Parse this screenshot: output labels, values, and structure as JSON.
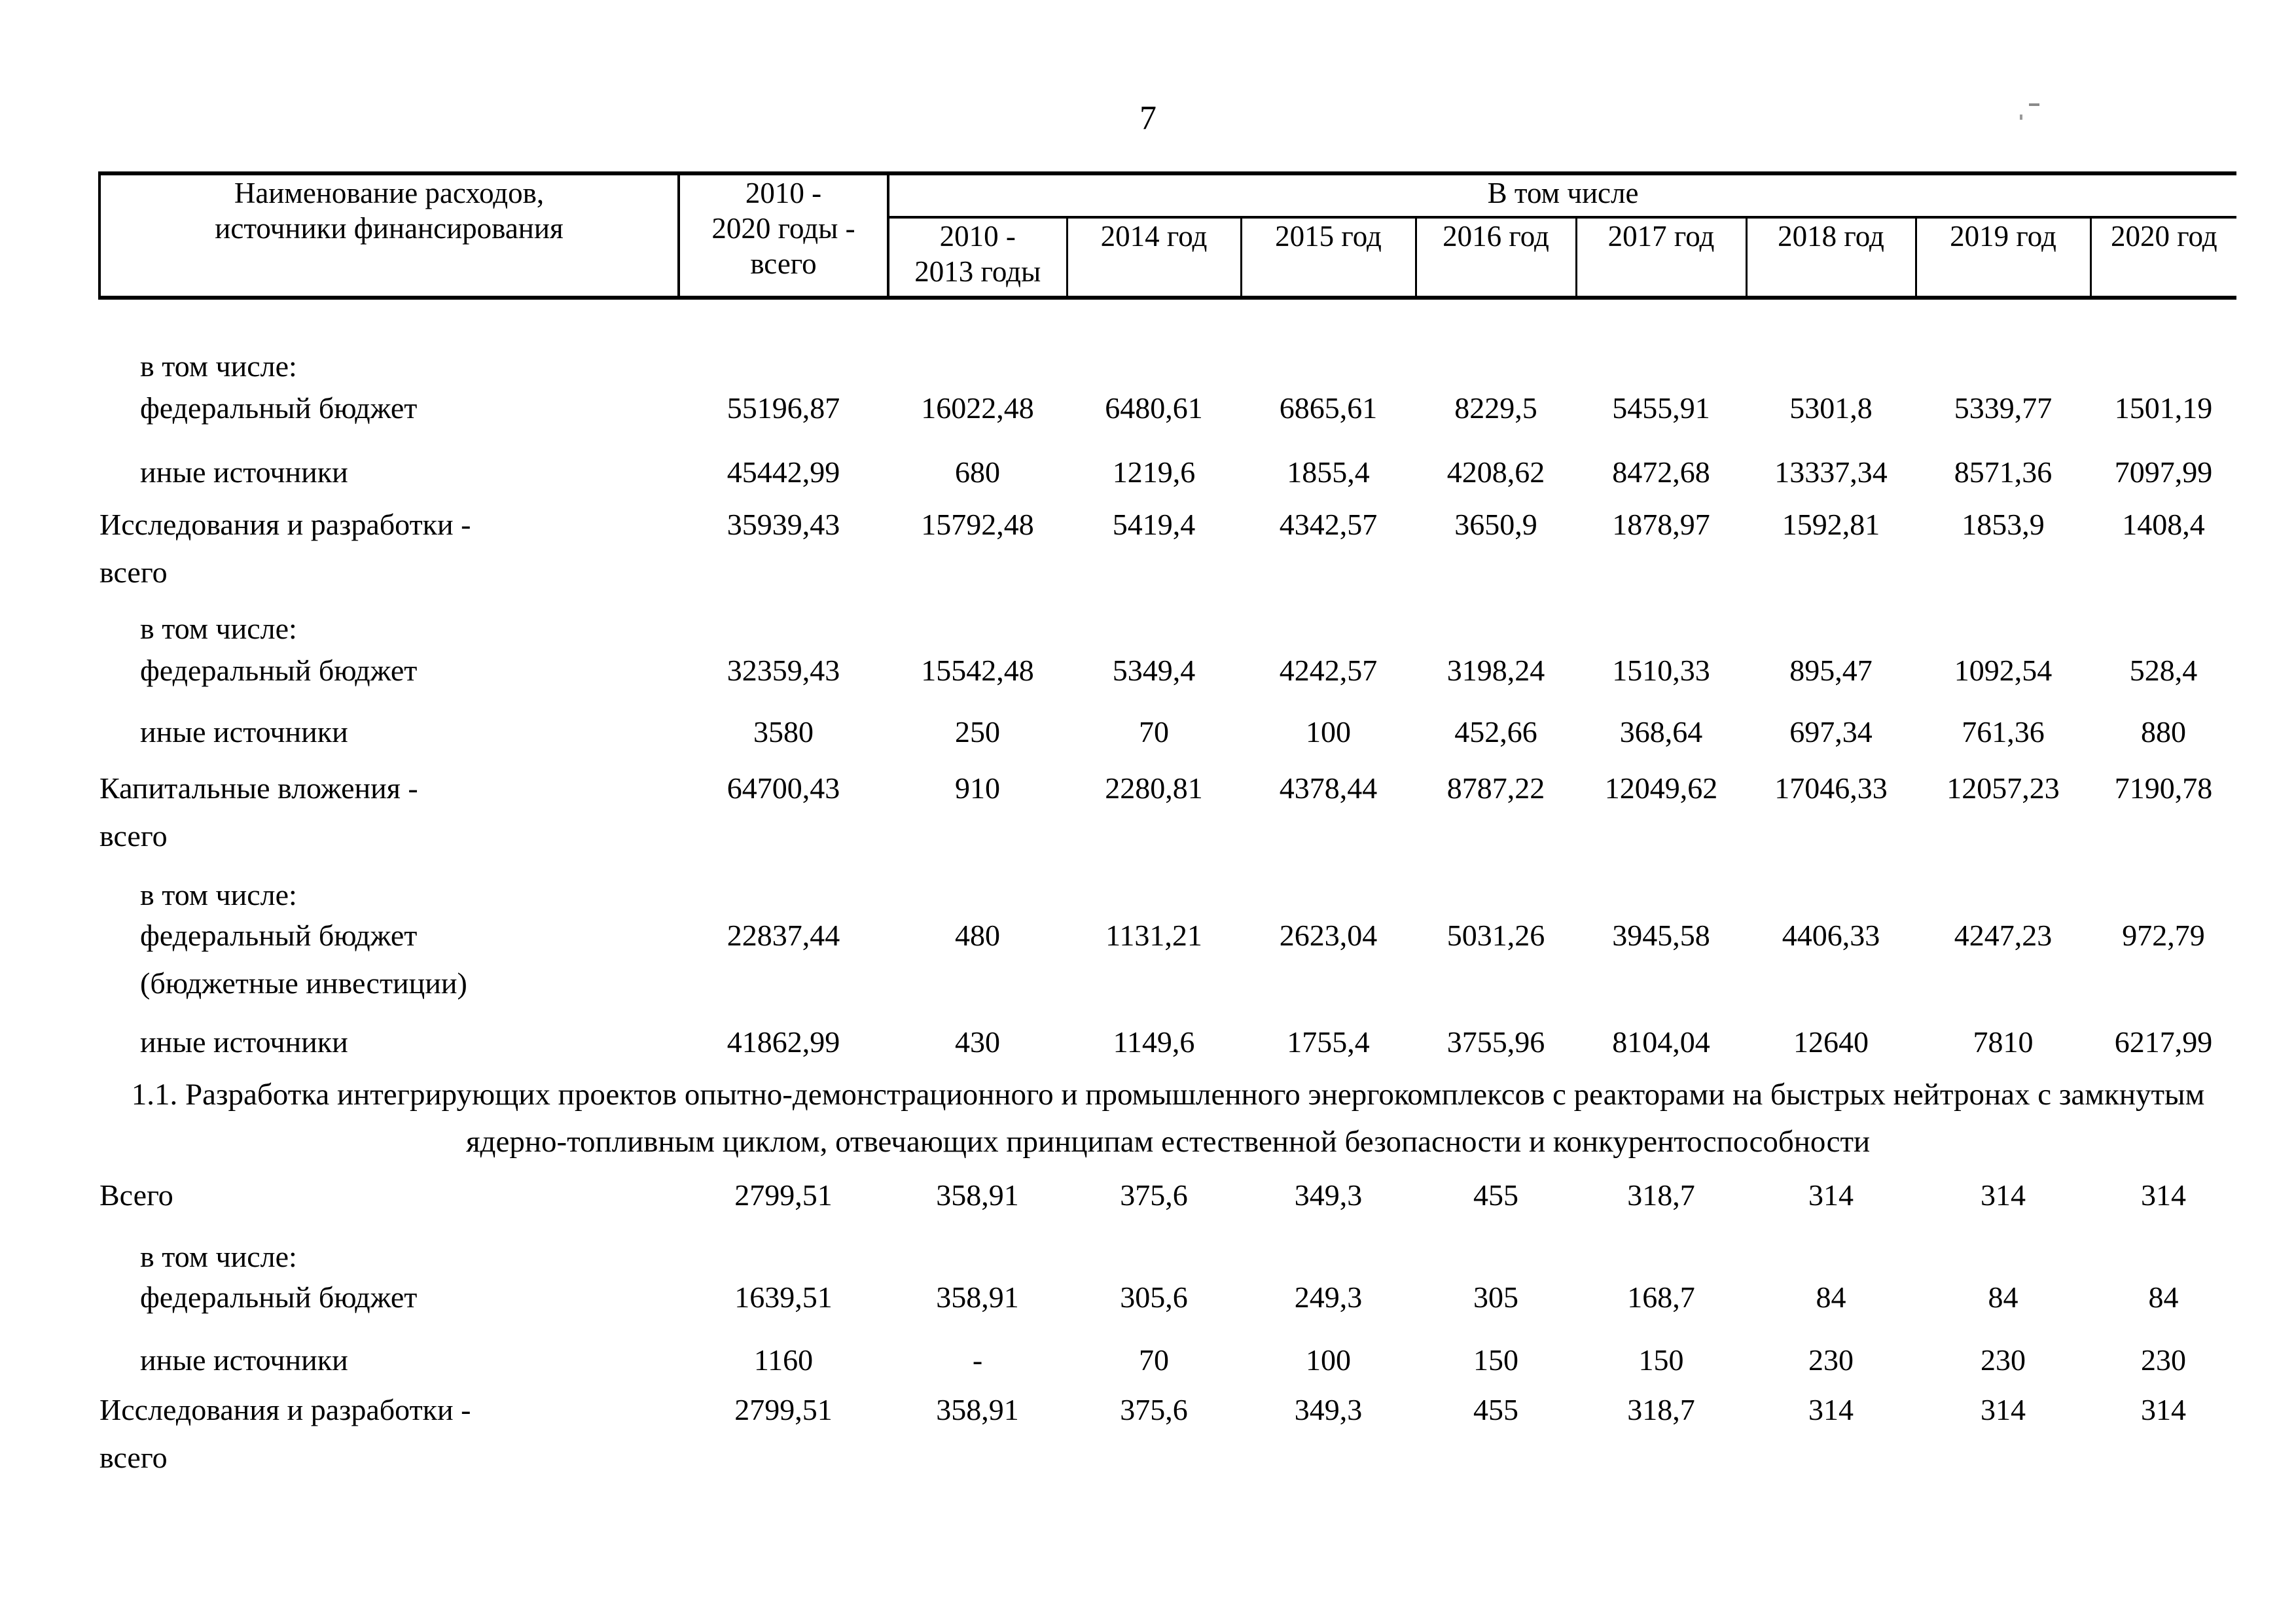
{
  "page": {
    "number": "7"
  },
  "table": {
    "header": {
      "col1": "Наименование расходов,\nисточники финансирования",
      "col2": "2010 -\n2020 годы -\nвсего",
      "group": "В том числе",
      "years": [
        "2010 -\n2013 годы",
        "2014 год",
        "2015 год",
        "2016 год",
        "2017 год",
        "2018 год",
        "2019 год",
        "2020 год"
      ]
    },
    "rows": [
      {
        "kind": "subhead",
        "label": "в том числе:"
      },
      {
        "kind": "indent",
        "label": "федеральный бюджет",
        "values": [
          "55196,87",
          "16022,48",
          "6480,61",
          "6865,61",
          "8229,5",
          "5455,91",
          "5301,8",
          "5339,77",
          "1501,19"
        ]
      },
      {
        "kind": "indent",
        "label": "иные источники",
        "values": [
          "45442,99",
          "680",
          "1219,6",
          "1855,4",
          "4208,62",
          "8472,68",
          "13337,34",
          "8571,36",
          "7097,99"
        ]
      },
      {
        "kind": "top",
        "label": "Исследования и разработки -",
        "label2": "всего",
        "values": [
          "35939,43",
          "15792,48",
          "5419,4",
          "4342,57",
          "3650,9",
          "1878,97",
          "1592,81",
          "1853,9",
          "1408,4"
        ]
      },
      {
        "kind": "subhead",
        "label": "в том числе:"
      },
      {
        "kind": "indent",
        "label": "федеральный бюджет",
        "values": [
          "32359,43",
          "15542,48",
          "5349,4",
          "4242,57",
          "3198,24",
          "1510,33",
          "895,47",
          "1092,54",
          "528,4"
        ]
      },
      {
        "kind": "indent",
        "label": "иные источники",
        "values": [
          "3580",
          "250",
          "70",
          "100",
          "452,66",
          "368,64",
          "697,34",
          "761,36",
          "880"
        ]
      },
      {
        "kind": "top",
        "label": "Капитальные вложения -",
        "label2": "всего",
        "values": [
          "64700,43",
          "910",
          "2280,81",
          "4378,44",
          "8787,22",
          "12049,62",
          "17046,33",
          "12057,23",
          "7190,78"
        ]
      },
      {
        "kind": "subhead",
        "label": "в том числе:"
      },
      {
        "kind": "indent",
        "label": "федеральный бюджет",
        "label2": "(бюджетные инвестиции)",
        "values": [
          "22837,44",
          "480",
          "1131,21",
          "2623,04",
          "5031,26",
          "3945,58",
          "4406,33",
          "4247,23",
          "972,79"
        ]
      },
      {
        "kind": "indent",
        "label": "иные источники",
        "values": [
          "41862,99",
          "430",
          "1149,6",
          "1755,4",
          "3755,96",
          "8104,04",
          "12640",
          "7810",
          "6217,99"
        ]
      },
      {
        "kind": "section",
        "label": "1.1. Разработка интегрирующих проектов опытно-демонстрационного и промышленного энергокомплексов с реакторами на быстрых нейтронах с замкнутым ядерно-топливным циклом, отвечающих принципам естественной безопасности и конкурентоспособности"
      },
      {
        "kind": "top",
        "label": "Всего",
        "values": [
          "2799,51",
          "358,91",
          "375,6",
          "349,3",
          "455",
          "318,7",
          "314",
          "314",
          "314"
        ]
      },
      {
        "kind": "subhead",
        "label": "в том числе:"
      },
      {
        "kind": "indent",
        "label": "федеральный бюджет",
        "values": [
          "1639,51",
          "358,91",
          "305,6",
          "249,3",
          "305",
          "168,7",
          "84",
          "84",
          "84"
        ]
      },
      {
        "kind": "indent",
        "label": "иные источники",
        "values": [
          "1160",
          "-",
          "70",
          "100",
          "150",
          "150",
          "230",
          "230",
          "230"
        ]
      },
      {
        "kind": "top",
        "label": "Исследования и разработки -",
        "label2": "всего",
        "values": [
          "2799,51",
          "358,91",
          "375,6",
          "349,3",
          "455",
          "318,7",
          "314",
          "314",
          "314"
        ]
      }
    ]
  }
}
